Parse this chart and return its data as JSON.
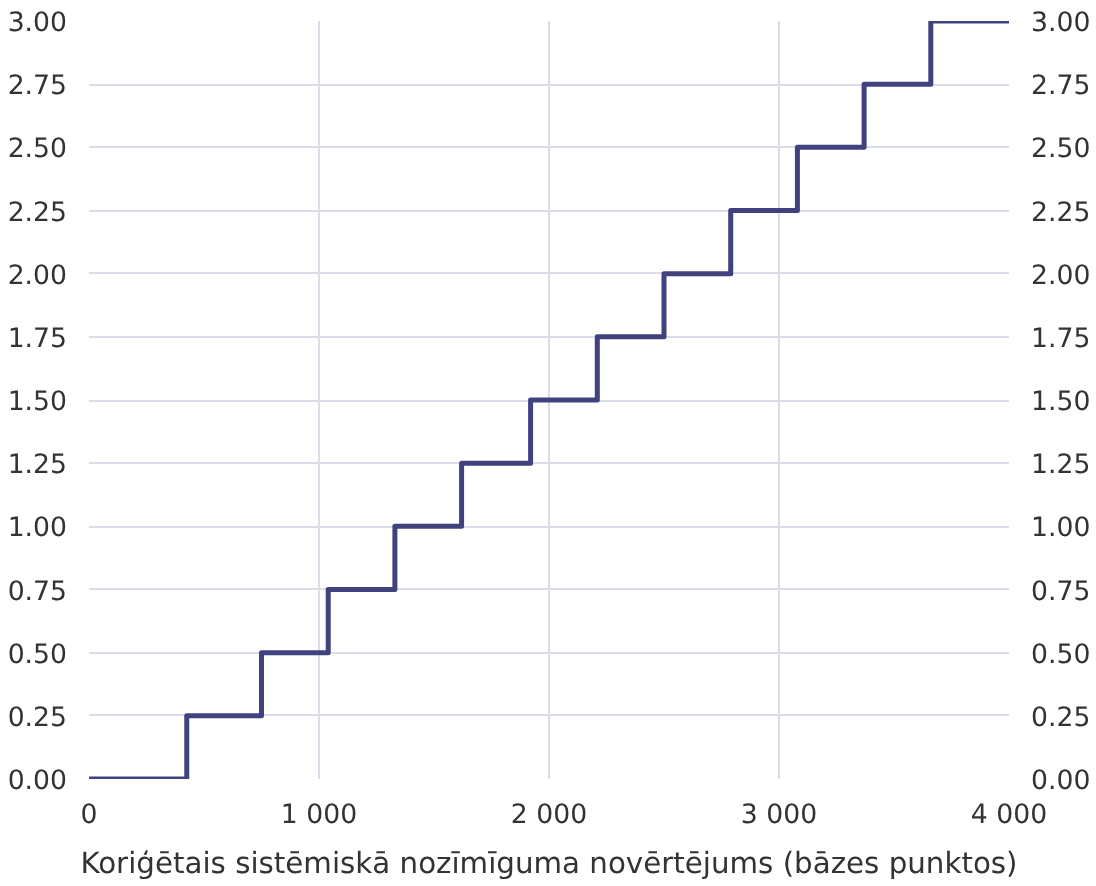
{
  "chart_data": {
    "type": "step",
    "xlabel": "Koriģētais sistēmiskā nozīmīguma novērtējums (bāzes punktos)",
    "x": [
      0,
      425,
      750,
      1040,
      1330,
      1620,
      1920,
      2210,
      2500,
      2790,
      3080,
      3370,
      3660,
      4000
    ],
    "series": [
      {
        "color": "#3f427e",
        "values": [
          0,
          0.25,
          0.5,
          0.75,
          1.0,
          1.25,
          1.5,
          1.75,
          2.0,
          2.25,
          2.5,
          2.75,
          3.0,
          3.0
        ]
      }
    ],
    "xlim": [
      0,
      4000
    ],
    "xticks": [
      0,
      {
        "value": 1000,
        "label": "1 000"
      },
      {
        "value": 2000,
        "label": "2 000"
      },
      {
        "value": 3000,
        "label": "3 000"
      },
      {
        "value": 4000,
        "label": "4 000"
      }
    ],
    "ylim": [
      0,
      3
    ],
    "yticks": [
      {
        "value": 0,
        "label": "0.00"
      },
      {
        "value": 0.25,
        "label": "0.25"
      },
      {
        "value": 0.5,
        "label": "0.50"
      },
      {
        "value": 0.75,
        "label": "0.75"
      },
      {
        "value": 1,
        "label": "1.00"
      },
      {
        "value": 1.25,
        "label": "1.25"
      },
      {
        "value": 1.5,
        "label": "1.50"
      },
      {
        "value": 1.75,
        "label": "1.75"
      },
      {
        "value": 2,
        "label": "2.00"
      },
      {
        "value": 2.25,
        "label": "2.25"
      },
      {
        "value": 2.5,
        "label": "2.50"
      },
      {
        "value": 2.75,
        "label": "2.75"
      },
      {
        "value": 3,
        "label": "3.00"
      }
    ],
    "y2lim": [
      0,
      3
    ],
    "y2ticks": [
      {
        "value": 0,
        "label": "0.00"
      },
      {
        "value": 0.25,
        "label": "0.25"
      },
      {
        "value": 0.5,
        "label": "0.50"
      },
      {
        "value": 0.75,
        "label": "0.75"
      },
      {
        "value": 1,
        "label": "1.00"
      },
      {
        "value": 1.25,
        "label": "1.25"
      },
      {
        "value": 1.5,
        "label": "1.50"
      },
      {
        "value": 1.75,
        "label": "1.75"
      },
      {
        "value": 2,
        "label": "2.00"
      },
      {
        "value": 2.25,
        "label": "2.25"
      },
      {
        "value": 2.5,
        "label": "2.50"
      },
      {
        "value": 2.75,
        "label": "2.75"
      },
      {
        "value": 3,
        "label": "3.00"
      }
    ],
    "grid": true,
    "marker": "none",
    "line_style": "solid"
  }
}
